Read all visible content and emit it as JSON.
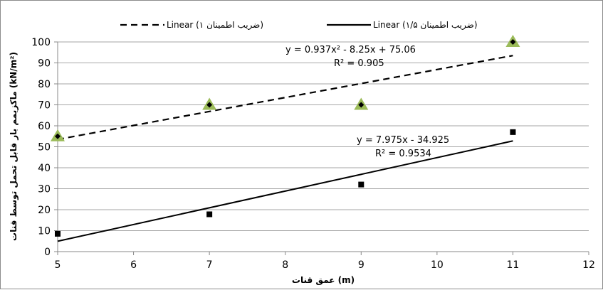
{
  "chart_data": {
    "type": "scatter",
    "xlabel": "عمق قنات (m)",
    "ylabel": "ماکزیمم بار قابل تحمل توسط قنات (kN/m²)",
    "xlim": [
      5,
      12
    ],
    "ylim": [
      0,
      100
    ],
    "x_ticks": [
      5,
      6,
      7,
      8,
      9,
      10,
      11,
      12
    ],
    "y_ticks": [
      0,
      10,
      20,
      30,
      40,
      50,
      60,
      70,
      80,
      90,
      100
    ],
    "grid": "horizontal",
    "legend_position": "top",
    "legend": [
      {
        "text": "Linear (ضریب اطمینان ۱)",
        "style": "dashed"
      },
      {
        "text": "Linear (ضریب اطمینان ۱/۵)",
        "style": "solid"
      }
    ],
    "series": [
      {
        "marker": "triangle",
        "color": "#9bbb59",
        "x": [
          5,
          7,
          9,
          11
        ],
        "y": [
          55,
          70,
          70,
          100
        ]
      },
      {
        "marker": "diamond",
        "color": "#000000",
        "x": [
          5,
          7,
          9,
          11
        ],
        "y": [
          55,
          70,
          70,
          100
        ]
      },
      {
        "marker": "square",
        "color": "#000000",
        "x": [
          5,
          7,
          9,
          11
        ],
        "y": [
          8.5,
          17.8,
          32,
          57
        ]
      }
    ],
    "trendlines": [
      {
        "style": "dashed",
        "x_range": [
          5,
          11
        ],
        "equation": "y = 0.937x² - 8.25x + 75.06",
        "r2": "R² = 0.905"
      },
      {
        "style": "solid",
        "x_range": [
          5,
          11
        ],
        "equation": "y = 7.975x - 34.925",
        "r2": "R² = 0.9534"
      }
    ]
  }
}
